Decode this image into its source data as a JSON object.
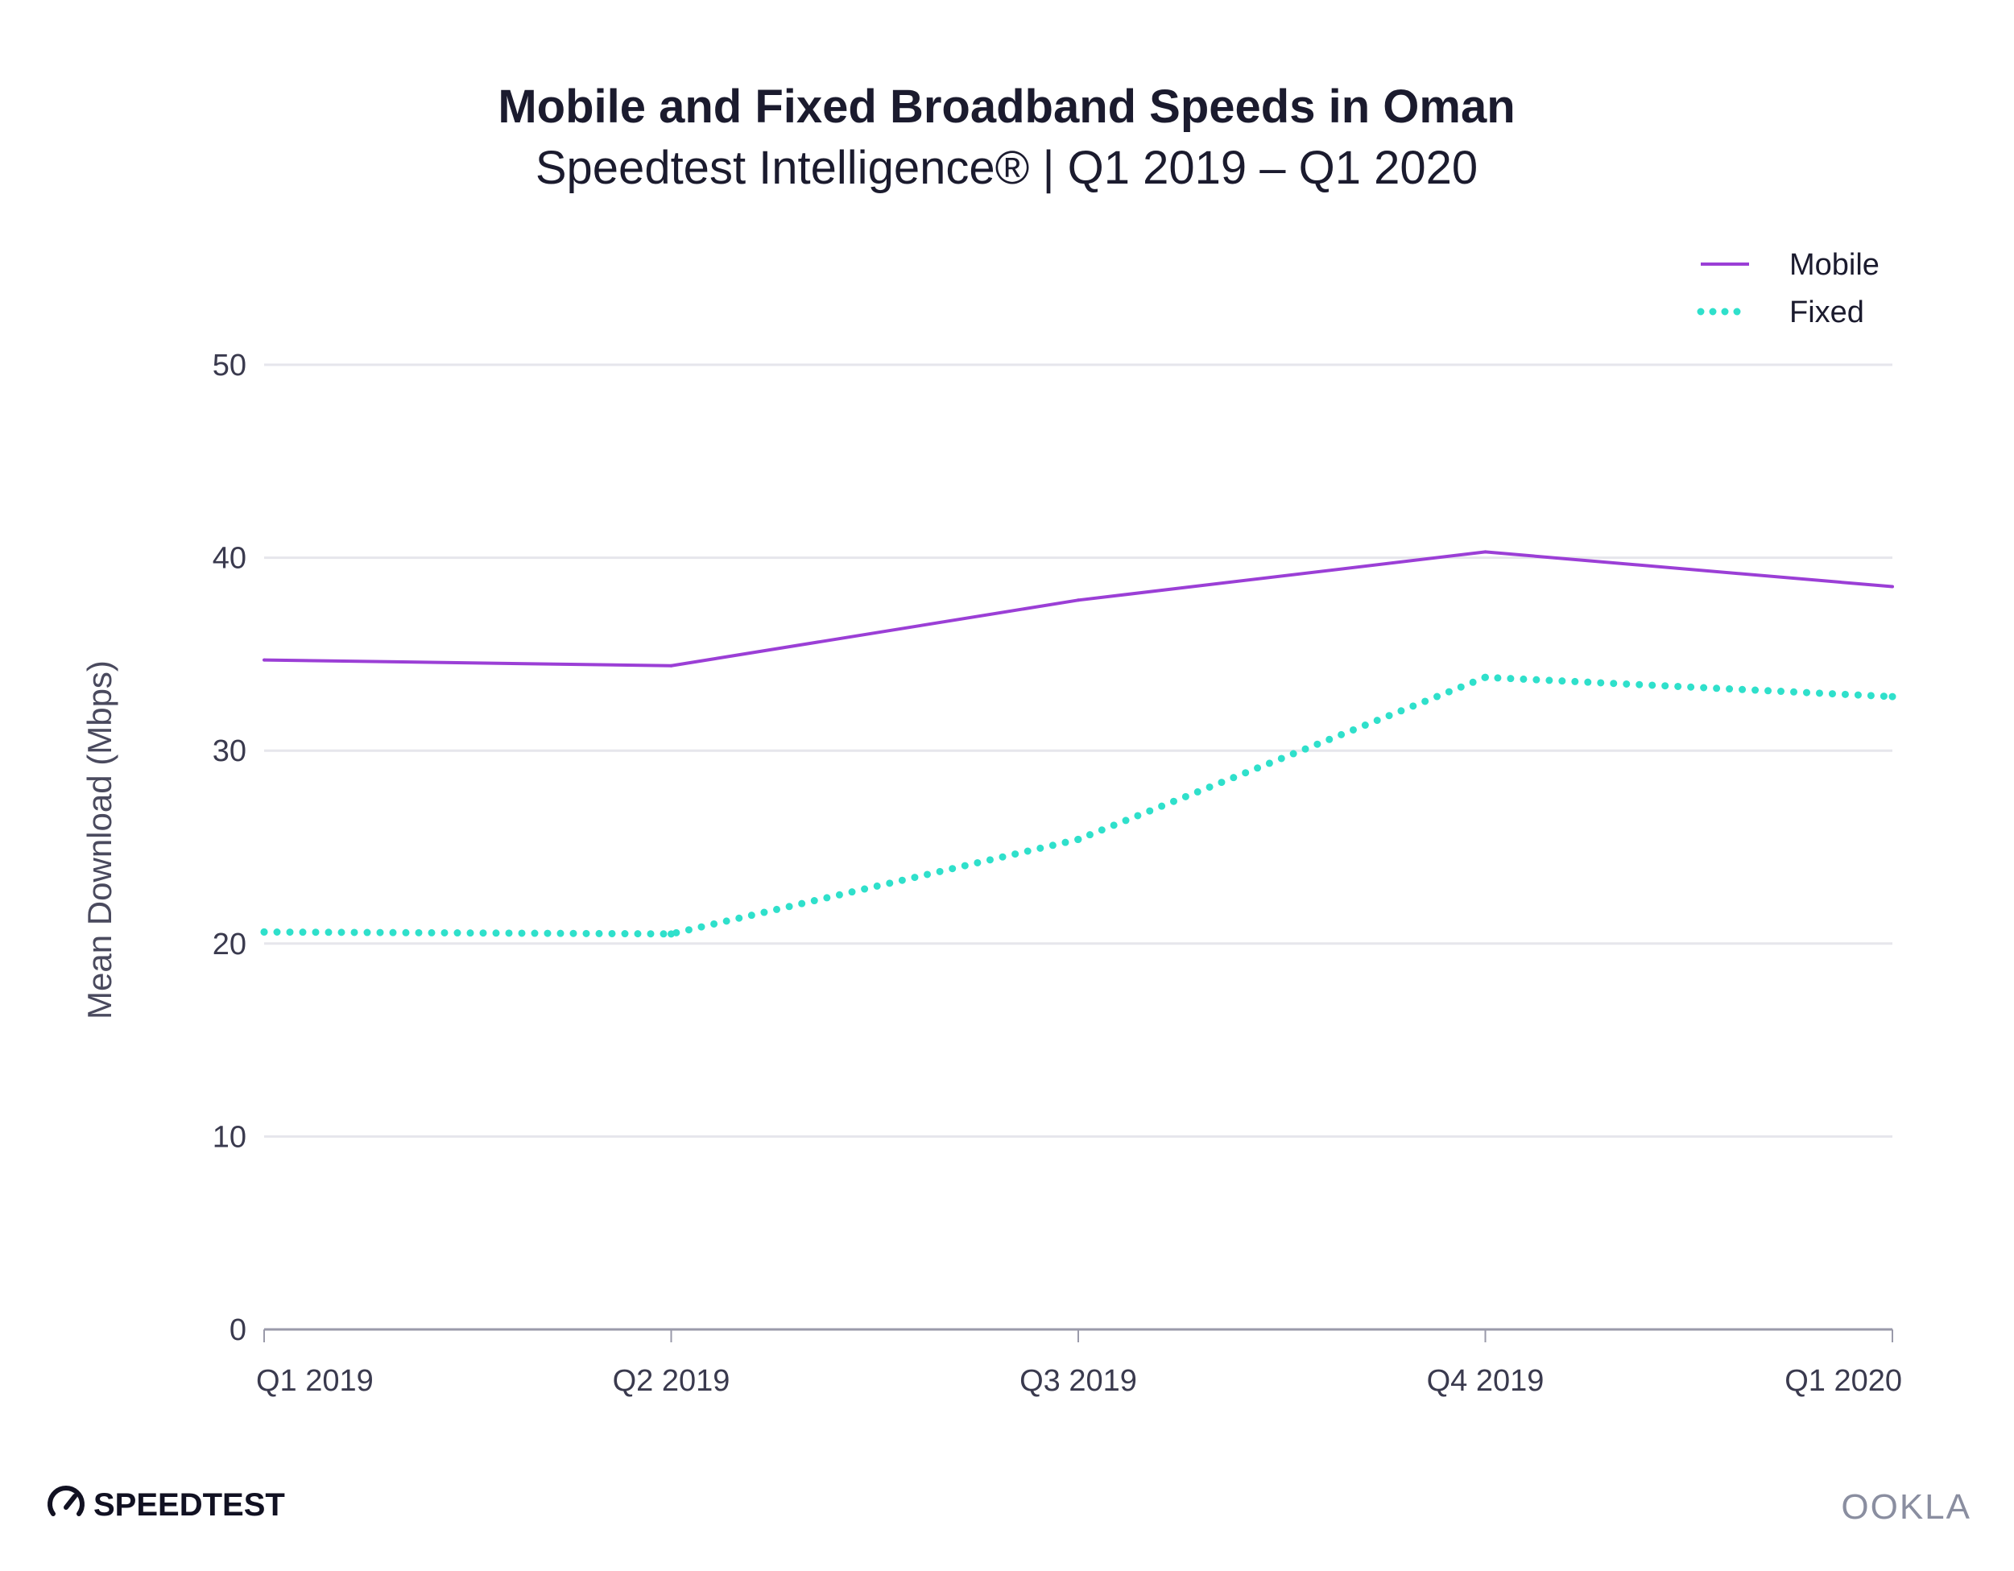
{
  "header": {
    "title": "Mobile and Fixed Broadband Speeds in Oman",
    "subtitle": "Speedtest Intelligence® | Q1 2019 – Q1 2020"
  },
  "chart_data": {
    "type": "line",
    "title": "Mobile and Fixed Broadband Speeds in Oman",
    "subtitle": "Speedtest Intelligence® | Q1 2019 – Q1 2020",
    "xlabel": "",
    "ylabel": "Mean Download (Mbps)",
    "categories": [
      "Q1 2019",
      "Q2 2019",
      "Q3 2019",
      "Q4 2019",
      "Q1 2020"
    ],
    "ylim": [
      0,
      50
    ],
    "yticks": [
      0,
      10,
      20,
      30,
      40,
      50
    ],
    "grid": true,
    "legend_position": "top-right",
    "series": [
      {
        "name": "Mobile",
        "style": "solid",
        "color": "#9b3fd6",
        "values": [
          34.7,
          34.4,
          37.8,
          40.3,
          38.5
        ]
      },
      {
        "name": "Fixed",
        "style": "dotted",
        "color": "#2fe0cb",
        "values": [
          20.6,
          20.5,
          25.4,
          33.8,
          32.8
        ]
      }
    ]
  },
  "footer": {
    "brand_left": "SPEEDTEST",
    "brand_right": "OOKLA"
  },
  "colors": {
    "grid": "#e6e6ec",
    "axis": "#9a9aaa",
    "mobile": "#9b3fd6",
    "fixed": "#2fe0cb"
  }
}
